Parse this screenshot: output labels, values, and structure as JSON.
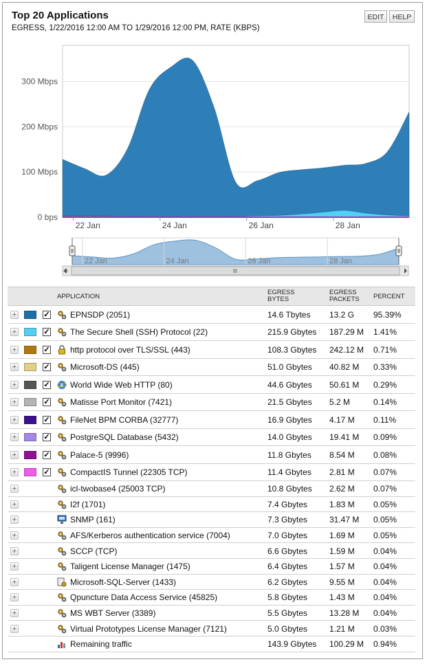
{
  "header": {
    "title": "Top 20 Applications",
    "subtitle": "EGRESS, 1/22/2016 12:00 AM TO 1/29/2016 12:00 PM, RATE (KBPS)",
    "edit_label": "EDIT",
    "help_label": "HELP"
  },
  "chart_data": {
    "type": "area",
    "x": [
      "1/21 18:00",
      "1/22 06:00",
      "1/22 18:00",
      "1/23 06:00",
      "1/23 18:00",
      "1/24 06:00",
      "1/24 18:00",
      "1/25 06:00",
      "1/25 18:00",
      "1/26 06:00",
      "1/26 18:00",
      "1/27 06:00",
      "1/27 18:00",
      "1/28 06:00",
      "1/28 18:00",
      "1/29 06:00",
      "1/29 18:00"
    ],
    "x_tick_labels": [
      "22 Jan",
      "24 Jan",
      "26 Jan",
      "28 Jan"
    ],
    "y_tick_labels": [
      "0 bps",
      "100 Mbps",
      "200 Mbps",
      "300 Mbps"
    ],
    "ylim": [
      0,
      380
    ],
    "grid": true,
    "series": [
      {
        "name": "EPNSDP (2051)",
        "color": "#2e7fb8",
        "values": [
          125,
          105,
          90,
          150,
          280,
          330,
          345,
          240,
          75,
          78,
          95,
          98,
          98,
          100,
          110,
          140,
          230
        ]
      },
      {
        "name": "The Secure Shell (SSH) Protocol (22)",
        "color": "#4fd3f5",
        "values": [
          1,
          1,
          1,
          1,
          1,
          1,
          1,
          1,
          1,
          2,
          3,
          6,
          10,
          14,
          8,
          4,
          2
        ]
      },
      {
        "name": "http protocol over TLS/SSL (443)",
        "color": "#b5791a",
        "values": [
          2,
          2,
          2,
          1,
          1,
          1,
          1,
          1,
          1,
          1,
          1,
          1,
          1,
          1,
          1,
          1,
          1
        ]
      }
    ],
    "navigator_tick_labels": [
      "22 Jan",
      "24 Jan",
      "26 Jan",
      "28 Jan"
    ]
  },
  "table": {
    "headers": {
      "application": "APPLICATION",
      "bytes_line1": "EGRESS",
      "bytes_line2": "BYTES",
      "packets_line1": "EGRESS",
      "packets_line2": "PACKETS",
      "percent": "PERCENT"
    },
    "rows": [
      {
        "name": "EPNSDP (2051)",
        "bytes": "14.6 Tbytes",
        "packets": "13.2 G",
        "percent": "95.39%",
        "color": "#1f6fa8",
        "checked": true,
        "icon": "gears-icon"
      },
      {
        "name": "The Secure Shell (SSH) Protocol (22)",
        "bytes": "215.9 Gbytes",
        "packets": "187.29 M",
        "percent": "1.41%",
        "color": "#55d0f2",
        "checked": true,
        "icon": "gears-icon"
      },
      {
        "name": "http protocol over TLS/SSL (443)",
        "bytes": "108.3 Gbytes",
        "packets": "242.12 M",
        "percent": "0.71%",
        "color": "#b07712",
        "checked": true,
        "icon": "lock-icon"
      },
      {
        "name": "Microsoft-DS (445)",
        "bytes": "51.0 Gbytes",
        "packets": "40.82 M",
        "percent": "0.33%",
        "color": "#e2cf88",
        "checked": true,
        "icon": "gears-icon"
      },
      {
        "name": "World Wide Web HTTP (80)",
        "bytes": "44.6 Gbytes",
        "packets": "50.61 M",
        "percent": "0.29%",
        "color": "#555555",
        "checked": true,
        "icon": "browser-icon"
      },
      {
        "name": "Matisse Port Monitor (7421)",
        "bytes": "21.5 Gbytes",
        "packets": "5.2 M",
        "percent": "0.14%",
        "color": "#b4b4b4",
        "checked": true,
        "icon": "gears-icon"
      },
      {
        "name": "FileNet BPM CORBA (32777)",
        "bytes": "16.9 Gbytes",
        "packets": "4.17 M",
        "percent": "0.11%",
        "color": "#3b1191",
        "checked": true,
        "icon": "gears-icon"
      },
      {
        "name": "PostgreSQL Database (5432)",
        "bytes": "14.0 Gbytes",
        "packets": "19.41 M",
        "percent": "0.09%",
        "color": "#a587e8",
        "checked": true,
        "icon": "gears-icon"
      },
      {
        "name": "Palace-5 (9996)",
        "bytes": "11.8 Gbytes",
        "packets": "8.54 M",
        "percent": "0.08%",
        "color": "#8e1390",
        "checked": true,
        "icon": "gears-icon"
      },
      {
        "name": "CompactIS Tunnel (22305 TCP)",
        "bytes": "11.4 Gbytes",
        "packets": "2.81 M",
        "percent": "0.07%",
        "color": "#ee5ee8",
        "checked": true,
        "icon": "gears-icon"
      },
      {
        "name": "icl-twobase4 (25003 TCP)",
        "bytes": "10.8 Gbytes",
        "packets": "2.62 M",
        "percent": "0.07%",
        "icon": "gears-icon"
      },
      {
        "name": "I2f (1701)",
        "bytes": "7.4 Gbytes",
        "packets": "1.83 M",
        "percent": "0.05%",
        "icon": "gears-icon"
      },
      {
        "name": "SNMP (161)",
        "bytes": "7.3 Gbytes",
        "packets": "31.47 M",
        "percent": "0.05%",
        "icon": "network-icon"
      },
      {
        "name": "AFS/Kerberos authentication service (7004)",
        "bytes": "7.0 Gbytes",
        "packets": "1.69 M",
        "percent": "0.05%",
        "icon": "gears-icon"
      },
      {
        "name": "SCCP (TCP)",
        "bytes": "6.6 Gbytes",
        "packets": "1.59 M",
        "percent": "0.04%",
        "icon": "gears-icon"
      },
      {
        "name": "Taligent License Manager (1475)",
        "bytes": "6.4 Gbytes",
        "packets": "1.57 M",
        "percent": "0.04%",
        "icon": "gears-icon"
      },
      {
        "name": "Microsoft-SQL-Server (1433)",
        "bytes": "6.2 Gbytes",
        "packets": "9.55 M",
        "percent": "0.04%",
        "icon": "database-icon"
      },
      {
        "name": "Qpuncture Data Access Service (45825)",
        "bytes": "5.8 Gbytes",
        "packets": "1.43 M",
        "percent": "0.04%",
        "icon": "gears-icon"
      },
      {
        "name": "MS WBT Server (3389)",
        "bytes": "5.5 Gbytes",
        "packets": "13.28 M",
        "percent": "0.04%",
        "icon": "gears-icon"
      },
      {
        "name": "Virtual Prototypes License Manager (7121)",
        "bytes": "5.0 Gbytes",
        "packets": "1.21 M",
        "percent": "0.03%",
        "icon": "gears-icon"
      },
      {
        "name": "Remaining traffic",
        "bytes": "143.9 Gbytes",
        "packets": "100.29 M",
        "percent": "0.94%",
        "icon": "bar-chart-icon",
        "remaining": true
      }
    ]
  }
}
